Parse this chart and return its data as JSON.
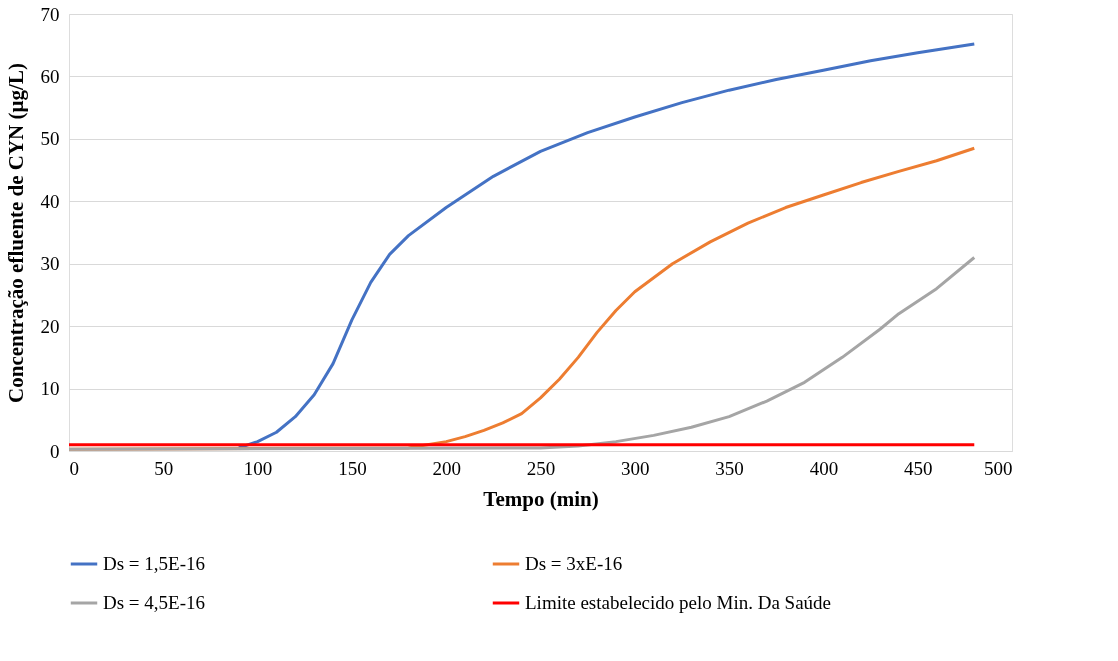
{
  "chart_data": {
    "type": "line",
    "xlabel": "Tempo (min)",
    "ylabel": "Concentração efluente de CYN (µg/L)",
    "xlim": [
      0,
      500
    ],
    "xticks": [
      0,
      50,
      100,
      150,
      200,
      250,
      300,
      350,
      400,
      450,
      500
    ],
    "ylim": [
      0,
      70
    ],
    "yticks": [
      0,
      10,
      20,
      30,
      40,
      50,
      60,
      70
    ],
    "grid": "y",
    "legend": "bottom",
    "marker": "none",
    "line_style": "solid",
    "series": [
      {
        "name": "Ds = 1,5E-16",
        "color": "#4472c4",
        "x": [
          90,
          100,
          110,
          120,
          130,
          140,
          150,
          160,
          170,
          180,
          200,
          225,
          250,
          275,
          300,
          325,
          350,
          375,
          400,
          425,
          450,
          480
        ],
        "values": [
          0.5,
          1.5,
          3,
          5.5,
          9,
          14,
          21,
          27,
          31.5,
          34.5,
          39,
          44,
          48,
          51,
          53.5,
          55.8,
          57.8,
          59.5,
          61,
          62.5,
          63.8,
          65.2
        ]
      },
      {
        "name": "Ds = 3xE-16",
        "color": "#ed7d31",
        "x": [
          0,
          180,
          190,
          200,
          210,
          220,
          230,
          240,
          250,
          260,
          270,
          280,
          290,
          300,
          320,
          340,
          360,
          380,
          400,
          420,
          440,
          460,
          480
        ],
        "values": [
          0.3,
          0.5,
          1,
          1.5,
          2.3,
          3.3,
          4.5,
          6,
          8.5,
          11.5,
          15,
          19,
          22.5,
          25.5,
          30,
          33.5,
          36.5,
          39,
          41,
          43,
          44.8,
          46.5,
          48.5
        ]
      },
      {
        "name": "Ds = 4,5E-16",
        "color": "#a5a5a5",
        "x": [
          0,
          250,
          270,
          290,
          310,
          330,
          350,
          370,
          390,
          410,
          430,
          440,
          460,
          480
        ],
        "values": [
          0.3,
          0.5,
          0.8,
          1.5,
          2.5,
          3.8,
          5.5,
          8,
          11,
          15,
          19.5,
          22,
          26,
          31
        ]
      },
      {
        "name": "Limite estabelecido pelo Min. Da Saúde",
        "color": "#ff0000",
        "x": [
          0,
          480
        ],
        "values": [
          1,
          1
        ]
      }
    ]
  }
}
